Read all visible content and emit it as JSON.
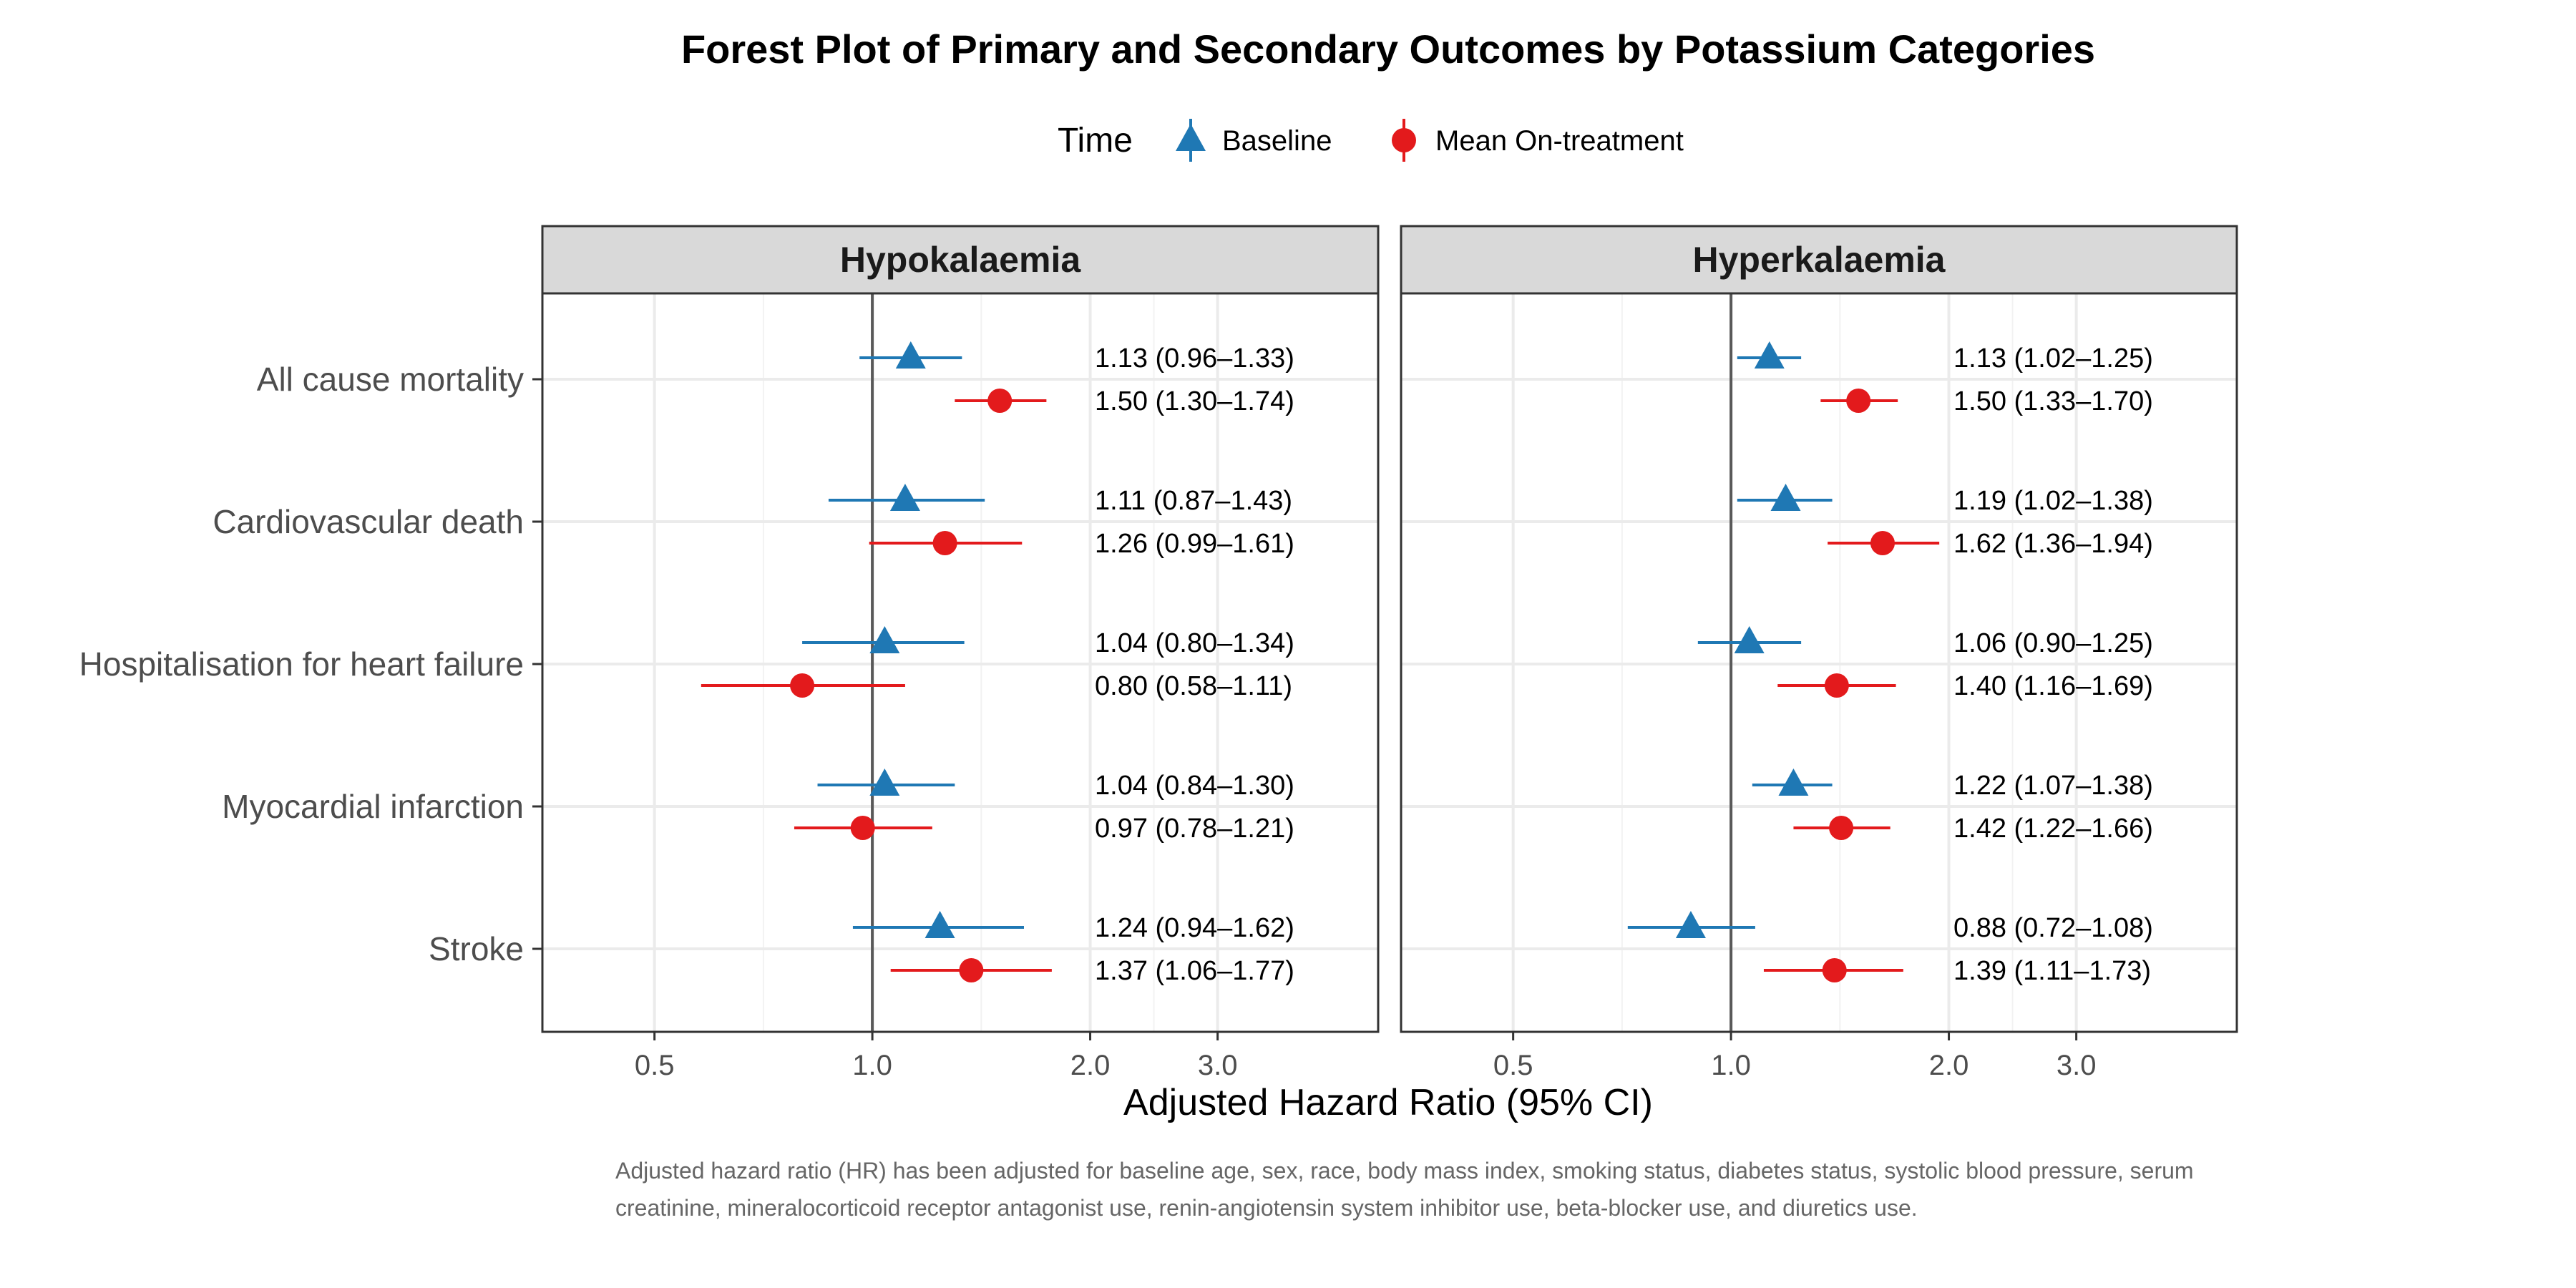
{
  "chart_data": {
    "type": "scatter",
    "subtype": "forest-plot",
    "title": "Forest Plot of Primary and Secondary Outcomes by Potassium Categories",
    "xlabel": "Adjusted Hazard Ratio (95% CI)",
    "ylabel": "",
    "x_scale": "log",
    "xlim": [
      0.35,
      5.0
    ],
    "xticks": [
      0.5,
      1.0,
      2.0,
      3.0
    ],
    "xtick_labels": [
      "0.5",
      "1.0",
      "2.0",
      "3.0"
    ],
    "reference_line": 1.0,
    "grid": true,
    "legend": {
      "title": "Time",
      "position": "top",
      "entries": [
        {
          "name": "Baseline",
          "shape": "triangle",
          "color": "#1f78b4"
        },
        {
          "name": "Mean On-treatment",
          "shape": "circle",
          "color": "#e31a1c"
        }
      ]
    },
    "outcomes": [
      "All cause mortality",
      "Cardiovascular death",
      "Hospitalisation for heart failure",
      "Myocardial infarction",
      "Stroke"
    ],
    "panels": [
      {
        "name": "Hypokalaemia",
        "series": [
          {
            "name": "Baseline",
            "values": [
              {
                "hr": 1.13,
                "lo": 0.96,
                "hi": 1.33,
                "label": "1.13 (0.96–1.33)"
              },
              {
                "hr": 1.11,
                "lo": 0.87,
                "hi": 1.43,
                "label": "1.11 (0.87–1.43)"
              },
              {
                "hr": 1.04,
                "lo": 0.8,
                "hi": 1.34,
                "label": "1.04 (0.80–1.34)"
              },
              {
                "hr": 1.04,
                "lo": 0.84,
                "hi": 1.3,
                "label": "1.04 (0.84–1.30)"
              },
              {
                "hr": 1.24,
                "lo": 0.94,
                "hi": 1.62,
                "label": "1.24 (0.94–1.62)"
              }
            ]
          },
          {
            "name": "Mean On-treatment",
            "values": [
              {
                "hr": 1.5,
                "lo": 1.3,
                "hi": 1.74,
                "label": "1.50 (1.30–1.74)"
              },
              {
                "hr": 1.26,
                "lo": 0.99,
                "hi": 1.61,
                "label": "1.26 (0.99–1.61)"
              },
              {
                "hr": 0.8,
                "lo": 0.58,
                "hi": 1.11,
                "label": "0.80 (0.58–1.11)"
              },
              {
                "hr": 0.97,
                "lo": 0.78,
                "hi": 1.21,
                "label": "0.97 (0.78–1.21)"
              },
              {
                "hr": 1.37,
                "lo": 1.06,
                "hi": 1.77,
                "label": "1.37 (1.06–1.77)"
              }
            ]
          }
        ]
      },
      {
        "name": "Hyperkalaemia",
        "series": [
          {
            "name": "Baseline",
            "values": [
              {
                "hr": 1.13,
                "lo": 1.02,
                "hi": 1.25,
                "label": "1.13 (1.02–1.25)"
              },
              {
                "hr": 1.19,
                "lo": 1.02,
                "hi": 1.38,
                "label": "1.19 (1.02–1.38)"
              },
              {
                "hr": 1.06,
                "lo": 0.9,
                "hi": 1.25,
                "label": "1.06 (0.90–1.25)"
              },
              {
                "hr": 1.22,
                "lo": 1.07,
                "hi": 1.38,
                "label": "1.22 (1.07–1.38)"
              },
              {
                "hr": 0.88,
                "lo": 0.72,
                "hi": 1.08,
                "label": "0.88 (0.72–1.08)"
              }
            ]
          },
          {
            "name": "Mean On-treatment",
            "values": [
              {
                "hr": 1.5,
                "lo": 1.33,
                "hi": 1.7,
                "label": "1.50 (1.33–1.70)"
              },
              {
                "hr": 1.62,
                "lo": 1.36,
                "hi": 1.94,
                "label": "1.62 (1.36–1.94)"
              },
              {
                "hr": 1.4,
                "lo": 1.16,
                "hi": 1.69,
                "label": "1.40 (1.16–1.69)"
              },
              {
                "hr": 1.42,
                "lo": 1.22,
                "hi": 1.66,
                "label": "1.42 (1.22–1.66)"
              },
              {
                "hr": 1.39,
                "lo": 1.11,
                "hi": 1.73,
                "label": "1.39 (1.11–1.73)"
              }
            ]
          }
        ]
      }
    ],
    "caption": "Adjusted hazard ratio (HR) has been adjusted for baseline age, sex, race, body mass index, smoking status, diabetes status, systolic blood pressure, serum creatinine, mineralocorticoid receptor antagonist use, renin-angiotensin system inhibitor use, beta-blocker use, and diuretics use."
  }
}
